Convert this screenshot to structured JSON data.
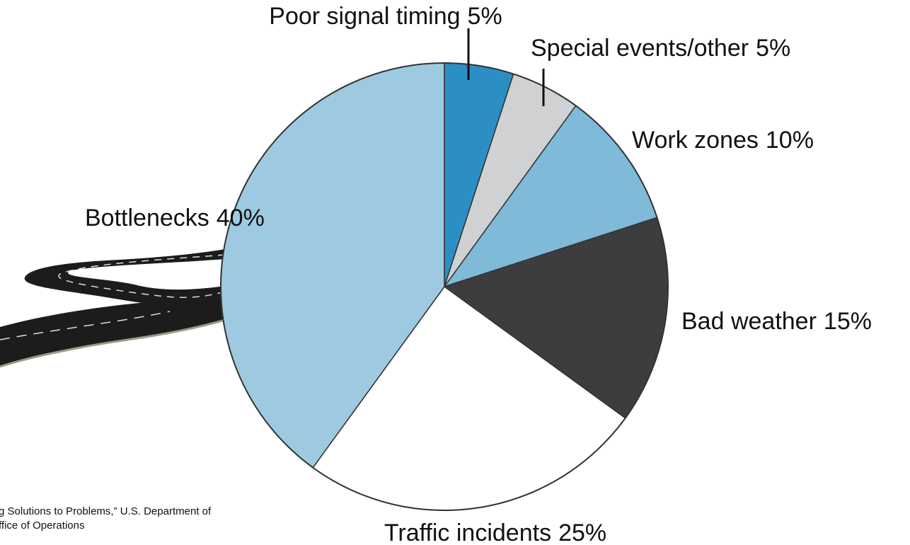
{
  "chart_data": {
    "type": "pie",
    "categories": [
      "Poor signal timing",
      "Special events/other",
      "Work zones",
      "Bad weather",
      "Traffic incidents",
      "Bottlenecks"
    ],
    "values": [
      5,
      5,
      10,
      15,
      25,
      40
    ],
    "value_labels": [
      "5%",
      "5%",
      "10%",
      "15%",
      "25%",
      "40%"
    ],
    "colors": [
      "#2b8fc4",
      "#d0d1d3",
      "#7fbad8",
      "#3d3d40",
      "#ffffff",
      "#9ecae1"
    ],
    "source_lines": [
      "g Solutions to Problems,” U.S. Department of",
      "ffice of Operations"
    ]
  }
}
